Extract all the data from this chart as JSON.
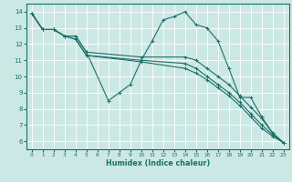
{
  "xlabel": "Humidex (Indice chaleur)",
  "bg_color": "#cce8e4",
  "line_color": "#1a7068",
  "grid_color": "#ffffff",
  "xlim": [
    -0.5,
    23.5
  ],
  "ylim": [
    5.5,
    14.5
  ],
  "xticks": [
    0,
    1,
    2,
    3,
    4,
    5,
    6,
    7,
    8,
    9,
    10,
    11,
    12,
    13,
    14,
    15,
    16,
    17,
    18,
    19,
    20,
    21,
    22,
    23
  ],
  "yticks": [
    6,
    7,
    8,
    9,
    10,
    11,
    12,
    13,
    14
  ],
  "series": [
    {
      "x": [
        0,
        1,
        2,
        3,
        4,
        5,
        7,
        8,
        9,
        10,
        11,
        12,
        13,
        14,
        15,
        16,
        17,
        18,
        19,
        20,
        21,
        22,
        23
      ],
      "y": [
        13.9,
        12.9,
        12.9,
        12.5,
        12.5,
        11.5,
        8.5,
        9.0,
        9.5,
        11.0,
        12.2,
        13.5,
        13.7,
        14.0,
        13.2,
        13.0,
        12.2,
        10.5,
        8.7,
        8.7,
        7.5,
        6.5,
        5.9
      ]
    },
    {
      "x": [
        0,
        1,
        2,
        3,
        4,
        5,
        10,
        14,
        15,
        16,
        17,
        18,
        19,
        20,
        21,
        22,
        23
      ],
      "y": [
        13.9,
        12.9,
        12.9,
        12.5,
        12.3,
        11.3,
        10.9,
        10.5,
        10.2,
        9.8,
        9.3,
        8.8,
        8.2,
        7.5,
        6.8,
        6.3,
        5.9
      ]
    },
    {
      "x": [
        0,
        1,
        2,
        3,
        4,
        5,
        10,
        14,
        15,
        16,
        17,
        18,
        19,
        20,
        21,
        22,
        23
      ],
      "y": [
        13.9,
        12.9,
        12.9,
        12.5,
        12.3,
        11.3,
        11.0,
        10.8,
        10.5,
        10.0,
        9.5,
        9.0,
        8.4,
        7.7,
        7.0,
        6.4,
        5.9
      ]
    },
    {
      "x": [
        0,
        1,
        2,
        3,
        4,
        5,
        10,
        14,
        15,
        16,
        17,
        18,
        19,
        20,
        21,
        22,
        23
      ],
      "y": [
        13.9,
        12.9,
        12.9,
        12.5,
        12.5,
        11.5,
        11.2,
        11.2,
        11.0,
        10.5,
        10.0,
        9.5,
        8.8,
        8.1,
        7.4,
        6.5,
        5.9
      ]
    }
  ]
}
